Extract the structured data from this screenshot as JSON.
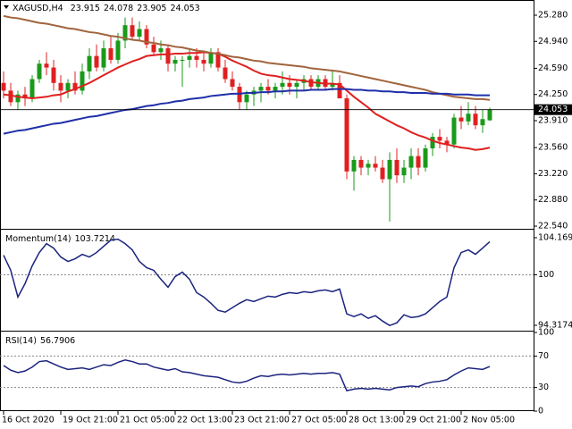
{
  "chart_data": [
    {
      "type": "candlestick",
      "title": "XAGUSD,H4",
      "categories": [
        "16 Oct 2020",
        null,
        null,
        null,
        null,
        null,
        null,
        null,
        "19 Oct 21:00",
        null,
        null,
        null,
        null,
        null,
        null,
        null,
        "21 Oct 05:00",
        null,
        null,
        null,
        null,
        null,
        null,
        null,
        "22 Oct 13:00",
        null,
        null,
        null,
        null,
        null,
        null,
        null,
        "23 Oct 21:00",
        null,
        null,
        null,
        null,
        null,
        null,
        null,
        "27 Oct 05:00",
        null,
        null,
        null,
        null,
        null,
        null,
        null,
        "28 Oct 13:00",
        null,
        null,
        null,
        null,
        null,
        null,
        null,
        "29 Oct 21:00",
        null,
        null,
        null,
        null,
        null,
        null,
        null,
        "2 Nov 05:00",
        null,
        null,
        null,
        null
      ],
      "candles": [
        [
          24.4,
          24.55,
          24.2,
          24.3
        ],
        [
          24.3,
          24.4,
          24.1,
          24.15
        ],
        [
          24.15,
          24.3,
          24.05,
          24.25
        ],
        [
          24.25,
          24.35,
          24.1,
          24.2
        ],
        [
          24.2,
          24.5,
          24.15,
          24.45
        ],
        [
          24.45,
          24.7,
          24.4,
          24.65
        ],
        [
          24.65,
          24.8,
          24.5,
          24.6
        ],
        [
          24.6,
          24.7,
          24.3,
          24.4
        ],
        [
          24.4,
          24.5,
          24.15,
          24.3
        ],
        [
          24.3,
          24.45,
          24.2,
          24.4
        ],
        [
          24.4,
          24.55,
          24.25,
          24.3
        ],
        [
          24.3,
          24.65,
          24.25,
          24.55
        ],
        [
          24.55,
          24.85,
          24.45,
          24.75
        ],
        [
          24.75,
          24.9,
          24.55,
          24.6
        ],
        [
          24.6,
          24.95,
          24.55,
          24.85
        ],
        [
          24.85,
          25.0,
          24.65,
          24.7
        ],
        [
          24.7,
          25.05,
          24.65,
          24.95
        ],
        [
          24.95,
          25.25,
          24.85,
          25.15
        ],
        [
          25.15,
          25.25,
          24.95,
          25.0
        ],
        [
          25.0,
          25.2,
          24.95,
          25.1
        ],
        [
          25.1,
          25.15,
          24.85,
          24.9
        ],
        [
          24.9,
          25.0,
          24.75,
          24.8
        ],
        [
          24.8,
          24.95,
          24.7,
          24.85
        ],
        [
          24.85,
          24.9,
          24.55,
          24.65
        ],
        [
          24.65,
          24.75,
          24.55,
          24.7
        ],
        [
          24.7,
          24.75,
          24.35,
          24.7
        ],
        [
          24.7,
          24.85,
          24.6,
          24.75
        ],
        [
          24.75,
          24.85,
          24.6,
          24.7
        ],
        [
          24.7,
          24.8,
          24.55,
          24.65
        ],
        [
          24.65,
          24.85,
          24.6,
          24.8
        ],
        [
          24.8,
          24.85,
          24.55,
          24.6
        ],
        [
          24.6,
          24.7,
          24.4,
          24.45
        ],
        [
          24.45,
          24.55,
          24.3,
          24.35
        ],
        [
          24.35,
          24.4,
          24.05,
          24.15
        ],
        [
          24.15,
          24.3,
          24.05,
          24.25
        ],
        [
          24.25,
          24.35,
          24.1,
          24.3
        ],
        [
          24.3,
          24.4,
          24.15,
          24.35
        ],
        [
          24.35,
          24.45,
          24.25,
          24.3
        ],
        [
          24.3,
          24.4,
          24.2,
          24.35
        ],
        [
          24.35,
          24.55,
          24.25,
          24.4
        ],
        [
          24.4,
          24.5,
          24.25,
          24.35
        ],
        [
          24.35,
          24.45,
          24.2,
          24.4
        ],
        [
          24.4,
          24.5,
          24.3,
          24.45
        ],
        [
          24.45,
          24.5,
          24.3,
          24.35
        ],
        [
          24.35,
          24.5,
          24.3,
          24.45
        ],
        [
          24.45,
          24.5,
          24.3,
          24.35
        ],
        [
          24.35,
          24.55,
          24.3,
          24.4
        ],
        [
          24.4,
          24.5,
          24.2,
          24.2
        ],
        [
          24.2,
          24.25,
          23.15,
          23.25
        ],
        [
          23.25,
          23.45,
          23.0,
          23.4
        ],
        [
          23.4,
          23.45,
          23.2,
          23.3
        ],
        [
          23.3,
          23.4,
          23.2,
          23.35
        ],
        [
          23.35,
          23.45,
          23.25,
          23.3
        ],
        [
          23.3,
          23.4,
          23.1,
          23.15
        ],
        [
          23.15,
          23.5,
          22.6,
          23.4
        ],
        [
          23.4,
          23.55,
          23.1,
          23.2
        ],
        [
          23.2,
          23.4,
          23.1,
          23.3
        ],
        [
          23.3,
          23.55,
          23.15,
          23.45
        ],
        [
          23.45,
          23.55,
          23.2,
          23.3
        ],
        [
          23.3,
          23.6,
          23.25,
          23.55
        ],
        [
          23.55,
          23.75,
          23.45,
          23.7
        ],
        [
          23.7,
          23.8,
          23.55,
          23.65
        ],
        [
          23.65,
          23.7,
          23.5,
          23.6
        ],
        [
          23.6,
          24.0,
          23.55,
          23.95
        ],
        [
          23.95,
          24.1,
          23.8,
          23.9
        ],
        [
          23.9,
          24.15,
          23.85,
          24.0
        ],
        [
          24.0,
          24.1,
          23.8,
          23.85
        ],
        [
          23.85,
          24.05,
          23.75,
          23.93
        ],
        [
          23.915,
          24.078,
          23.905,
          24.053
        ]
      ],
      "up_color": "#1a9a1a",
      "down_color": "#e02020",
      "series": [
        {
          "color": "#e02020",
          "values": [
            24.25,
            24.24,
            24.22,
            24.21,
            24.2,
            24.21,
            24.22,
            24.24,
            24.25,
            24.29,
            24.32,
            24.36,
            24.4,
            24.45,
            24.5,
            24.55,
            24.6,
            24.64,
            24.68,
            24.71,
            24.75,
            24.76,
            24.77,
            24.77,
            24.78,
            24.78,
            24.79,
            24.79,
            24.8,
            24.79,
            24.78,
            24.74,
            24.69,
            24.65,
            24.61,
            24.56,
            24.52,
            24.5,
            24.49,
            24.47,
            24.45,
            24.44,
            24.43,
            24.41,
            24.4,
            24.39,
            24.39,
            24.38,
            24.3,
            24.22,
            24.15,
            24.08,
            24.0,
            23.95,
            23.9,
            23.85,
            23.81,
            23.76,
            23.72,
            23.69,
            23.65,
            23.62,
            23.6,
            23.58,
            23.56,
            23.55,
            23.53,
            23.54,
            23.56
          ]
        },
        {
          "color": "#a0643c",
          "values": [
            25.27,
            25.25,
            25.24,
            25.22,
            25.2,
            25.18,
            25.17,
            25.15,
            25.13,
            25.11,
            25.1,
            25.08,
            25.06,
            25.05,
            25.03,
            25.01,
            25.0,
            24.98,
            24.96,
            24.95,
            24.93,
            24.92,
            24.9,
            24.89,
            24.87,
            24.86,
            24.84,
            24.82,
            24.81,
            24.79,
            24.78,
            24.76,
            24.74,
            24.73,
            24.71,
            24.69,
            24.68,
            24.66,
            24.65,
            24.64,
            24.63,
            24.62,
            24.61,
            24.59,
            24.58,
            24.57,
            24.56,
            24.55,
            24.53,
            24.51,
            24.49,
            24.47,
            24.45,
            24.43,
            24.41,
            24.39,
            24.37,
            24.35,
            24.33,
            24.31,
            24.28,
            24.26,
            24.24,
            24.22,
            24.21,
            24.2,
            24.19,
            24.19,
            24.18
          ]
        },
        {
          "color": "#1f2fa8",
          "values": [
            23.74,
            23.76,
            23.78,
            23.79,
            23.81,
            23.83,
            23.85,
            23.87,
            23.88,
            23.9,
            23.92,
            23.94,
            23.96,
            23.97,
            23.99,
            24.01,
            24.03,
            24.05,
            24.06,
            24.08,
            24.1,
            24.11,
            24.13,
            24.14,
            24.16,
            24.17,
            24.19,
            24.2,
            24.21,
            24.23,
            24.24,
            24.25,
            24.26,
            24.26,
            24.27,
            24.27,
            24.28,
            24.28,
            24.29,
            24.29,
            24.3,
            24.3,
            24.3,
            24.31,
            24.31,
            24.31,
            24.32,
            24.32,
            24.32,
            24.31,
            24.31,
            24.3,
            24.3,
            24.29,
            24.29,
            24.28,
            24.28,
            24.27,
            24.27,
            24.27,
            24.26,
            24.26,
            24.26,
            24.25,
            24.25,
            24.25,
            24.24,
            24.24,
            24.24
          ]
        }
      ],
      "ylim": [
        22.517,
        25.454
      ],
      "yticks": [
        {
          "value": 25.28,
          "label": "25.280"
        },
        {
          "value": 24.94,
          "label": "24.940"
        },
        {
          "value": 24.59,
          "label": "24.590"
        },
        {
          "value": 24.25,
          "label": "24.250"
        },
        {
          "value": 23.91,
          "label": "23.910"
        },
        {
          "value": 23.56,
          "label": "23.560"
        },
        {
          "value": 23.22,
          "label": "23.220"
        },
        {
          "value": 22.88,
          "label": "22.880"
        },
        {
          "value": 22.54,
          "label": "22.540"
        }
      ],
      "price_line": true
    },
    {
      "type": "line",
      "title": "Momentum(14)",
      "series": [
        {
          "color": "#1a237e",
          "values": [
            102.2,
            100.5,
            97.5,
            99.0,
            101.0,
            102.5,
            103.5,
            103.0,
            102.0,
            101.5,
            101.8,
            102.3,
            102.0,
            102.5,
            103.2,
            103.9,
            104.0,
            103.5,
            102.8,
            101.5,
            100.8,
            100.5,
            99.5,
            98.6,
            99.8,
            100.3,
            99.5,
            98.0,
            97.5,
            96.8,
            96.0,
            95.8,
            96.3,
            96.8,
            97.2,
            97.0,
            97.3,
            97.6,
            97.5,
            97.8,
            98.0,
            97.9,
            98.1,
            98.0,
            98.2,
            98.3,
            98.1,
            98.4,
            95.6,
            95.3,
            95.6,
            95.1,
            95.4,
            94.8,
            94.3,
            94.6,
            95.5,
            95.2,
            95.3,
            95.6,
            96.3,
            97.0,
            97.5,
            100.8,
            102.5,
            102.8,
            102.3,
            103.0,
            103.7214
          ]
        }
      ],
      "ylim": [
        93.714,
        104.97
      ],
      "yticks": [
        104.1692,
        100,
        94.3174
      ],
      "levels": [
        100
      ]
    },
    {
      "type": "line",
      "title": "RSI(14)",
      "series": [
        {
          "color": "#1a237e",
          "values": [
            58,
            52,
            49,
            51,
            56,
            63,
            64,
            60,
            56,
            53,
            54,
            55,
            53,
            56,
            59,
            58,
            62,
            65,
            63,
            60,
            60,
            56,
            54,
            52,
            54,
            50,
            49,
            47,
            45,
            44,
            43,
            40,
            37,
            36,
            38,
            42,
            45,
            44,
            46,
            47,
            46,
            47,
            48,
            47,
            48,
            48,
            49,
            47,
            26,
            28,
            29,
            28,
            29,
            28,
            27,
            30,
            31,
            32,
            31,
            35,
            37,
            38,
            40,
            46,
            51,
            55,
            54,
            53,
            56.7906
          ]
        }
      ],
      "ylim": [
        0,
        100
      ],
      "yticks": [
        100,
        70,
        30,
        0
      ],
      "levels": [
        70,
        30
      ]
    }
  ]
}
